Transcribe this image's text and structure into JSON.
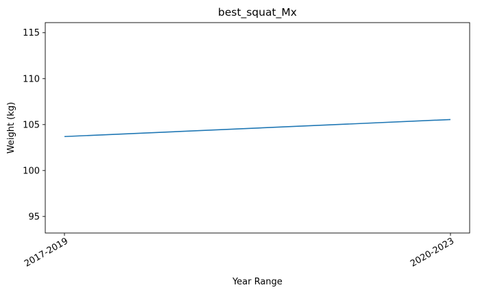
{
  "chart_data": {
    "type": "line",
    "title": "best_squat_Mx",
    "xlabel": "Year Range",
    "ylabel": "Weight (kg)",
    "categories": [
      "2017-2019",
      "2020-2023"
    ],
    "series": [
      {
        "values": [
          103.7,
          105.55
        ],
        "color": "#1f77b4"
      }
    ],
    "ylim": [
      93.2,
      116.1
    ],
    "yticks": [
      95,
      100,
      105,
      110,
      115
    ],
    "ytick_labels": [
      "95",
      "100",
      "105",
      "110",
      "115"
    ],
    "xtick_rotation_deg": 30,
    "grid": false,
    "legend": "none"
  }
}
